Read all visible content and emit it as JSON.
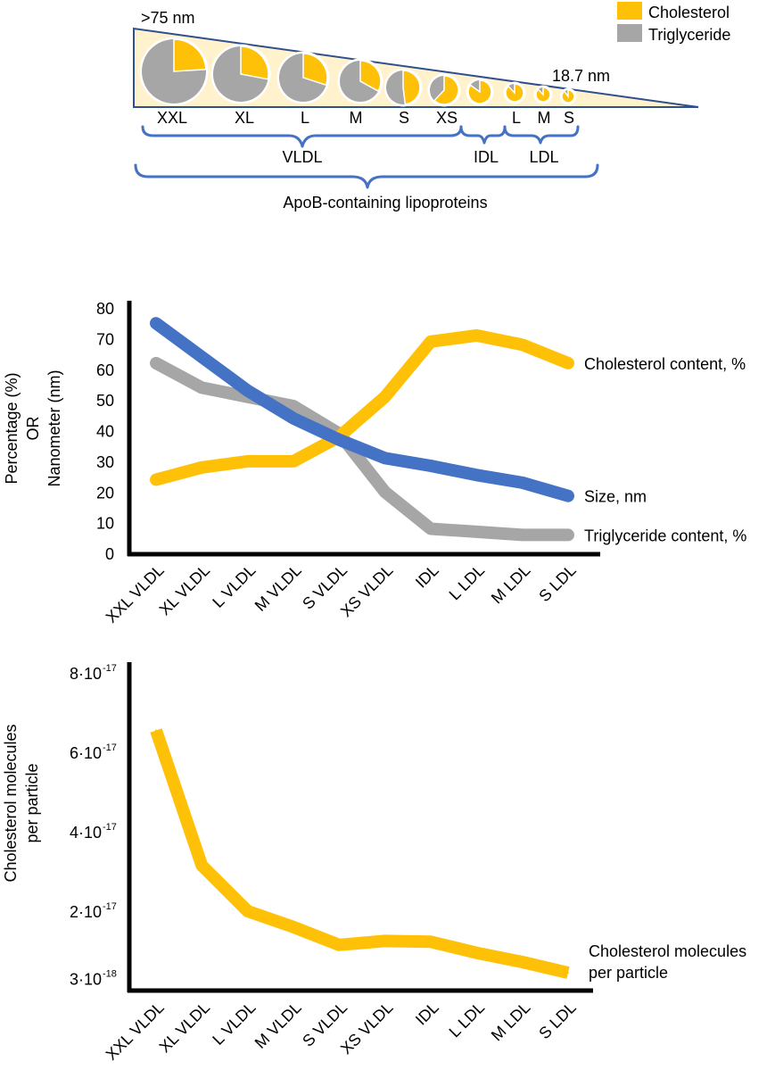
{
  "colors": {
    "cholesterol": "#FFC107",
    "triglyceride": "#A6A6A6",
    "size": "#4472C4",
    "brace": "#4472C4",
    "wedge_fill": "#FFF2CC",
    "wedge_stroke": "#2F4F8F"
  },
  "schematic": {
    "legend": [
      {
        "label": "Cholesterol",
        "color": "#FFC107"
      },
      {
        "label": "Triglyceride",
        "color": "#A6A6A6"
      }
    ],
    "size_large_label": ">75 nm",
    "size_small_label": "18.7 nm",
    "particles": [
      {
        "label": "XXL",
        "cholesterol_pct": 24
      },
      {
        "label": "XL",
        "cholesterol_pct": 28
      },
      {
        "label": "L",
        "cholesterol_pct": 30
      },
      {
        "label": "M",
        "cholesterol_pct": 33
      },
      {
        "label": "S",
        "cholesterol_pct": 48
      },
      {
        "label": "XS",
        "cholesterol_pct": 62
      },
      {
        "label": "",
        "cholesterol_pct": 85
      },
      {
        "label": "L",
        "cholesterol_pct": 88
      },
      {
        "label": "M",
        "cholesterol_pct": 88
      },
      {
        "label": "S",
        "cholesterol_pct": 90
      }
    ],
    "groups": {
      "vldl": "VLDL",
      "idl": "IDL",
      "ldl": "LDL",
      "all": "ApoB-containing lipoproteins"
    }
  },
  "chart_data": [
    {
      "type": "line",
      "title": "",
      "xlabel": "",
      "ylabel_lines": [
        "Percentage (%)",
        "OR",
        "Nanometer (nm)"
      ],
      "ylim": [
        0,
        80
      ],
      "yticks": [
        0,
        10,
        20,
        30,
        40,
        50,
        60,
        70,
        80
      ],
      "ytick_labels": [
        "0",
        "10",
        "20",
        "30",
        "40",
        "50",
        "60",
        "70",
        "80"
      ],
      "categories": [
        "XXL VLDL",
        "XL VLDL",
        "L VLDL",
        "M VLDL",
        "S VLDL",
        "XS VLDL",
        "IDL",
        "L LDL",
        "M LDL",
        "S LDL"
      ],
      "series": [
        {
          "name": "Cholesterol content, %",
          "color": "#FFC107",
          "values": [
            24,
            28,
            30,
            30,
            38,
            51,
            69,
            71,
            68,
            62
          ]
        },
        {
          "name": "Size, nm",
          "color": "#4472C4",
          "values": [
            75,
            64,
            53,
            44,
            37,
            31,
            28.5,
            25.5,
            23,
            18.7
          ]
        },
        {
          "name": "Triglyceride content, %",
          "color": "#A6A6A6",
          "values": [
            62,
            54,
            51,
            48,
            39,
            20,
            8,
            7,
            6,
            6
          ]
        }
      ]
    },
    {
      "type": "line",
      "title": "",
      "xlabel": "",
      "ylabel_lines": [
        "Cholesterol molecules",
        "per particle"
      ],
      "ylim": [
        0,
        8
      ],
      "yticks": [
        0.3,
        2,
        4,
        6,
        8
      ],
      "ytick_labels": [
        {
          "base": "3·10",
          "exp": "-18"
        },
        {
          "base": "2·10",
          "exp": "-17"
        },
        {
          "base": "4·10",
          "exp": "-17"
        },
        {
          "base": "6·10",
          "exp": "-17"
        },
        {
          "base": "8·10",
          "exp": "-17"
        }
      ],
      "categories": [
        "XXL VLDL",
        "XL VLDL",
        "L VLDL",
        "M VLDL",
        "S VLDL",
        "XS VLDL",
        "IDL",
        "L LDL",
        "M LDL",
        "S LDL"
      ],
      "series": [
        {
          "name_lines": [
            "Cholesterol molecules",
            "per particle"
          ],
          "color": "#FFC107",
          "values": [
            6.55,
            3.15,
            2.0,
            1.6,
            1.15,
            1.25,
            1.23,
            0.95,
            0.72,
            0.45
          ]
        }
      ]
    }
  ]
}
